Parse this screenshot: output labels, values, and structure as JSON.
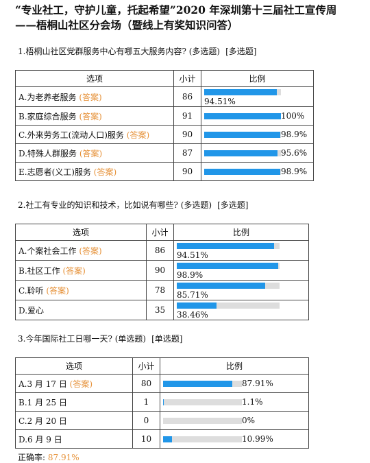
{
  "title": "“专业社工，守护儿童，托起希望”2020 年深圳第十三届社工宣传周——梧桐山社区分会场（暨线上有奖知识问答）",
  "questions": [
    {
      "text": "1.梧桐山社区党群服务中心有哪五大服务内容? (多选题)",
      "kind": "[多选题]",
      "header": [
        "选项",
        "小计",
        "比例"
      ],
      "rows": [
        {
          "option": "A.为老养老服务",
          "tag": "(答案)",
          "count": 86,
          "ratio": {
            "value": 94.51,
            "label": "94.51%"
          }
        },
        {
          "option": "B.家庭综合服务",
          "tag": "(答案)",
          "count": 91,
          "ratio": {
            "value": 100,
            "label": "100%"
          }
        },
        {
          "option": "C.外来劳务工(流动人口)服务",
          "tag": "(答案)",
          "count": 90,
          "ratio": {
            "value": 98.9,
            "label": "98.9%"
          }
        },
        {
          "option": "D.特殊人群服务",
          "tag": "(答案)",
          "count": 87,
          "ratio": {
            "value": 95.6,
            "label": "95.6%"
          }
        },
        {
          "option": "E.志愿者(义工)服务",
          "tag": "(答案)",
          "count": 90,
          "ratio": {
            "value": 98.9,
            "label": "98.9%"
          }
        }
      ]
    },
    {
      "text": "2.社工有专业的知识和技术，比如说有哪些? (多选题)",
      "kind": "[多选题]",
      "header": [
        "选项",
        "小计",
        "比例"
      ],
      "rows": [
        {
          "option": "A.个案社会工作",
          "tag": "(答案)",
          "count": 86,
          "ratio": {
            "value": 94.51,
            "label": "94.51%"
          }
        },
        {
          "option": "B.社区工作",
          "tag": "(答案)",
          "count": 90,
          "ratio": {
            "value": 98.9,
            "label": "98.9%"
          }
        },
        {
          "option": "C.聆听",
          "tag": "(答案)",
          "count": 78,
          "ratio": {
            "value": 85.71,
            "label": "85.71%"
          }
        },
        {
          "option": "D.爱心",
          "count": 35,
          "ratio": {
            "value": 38.46,
            "label": "38.46%"
          }
        }
      ]
    },
    {
      "text": "3.今年国际社工日哪一天? (单选题)",
      "kind": "[单选题]",
      "header": [
        "选项",
        "小计",
        "比例"
      ],
      "rows": [
        {
          "option": "A.3 月 17 日",
          "tag": "(答案)",
          "count": 80,
          "ratio": {
            "value": 87.91,
            "label": "87.91%"
          }
        },
        {
          "option": "B.1 月 25 日",
          "count": 1,
          "ratio": {
            "value": 1.1,
            "label": "1.1%"
          }
        },
        {
          "option": "C.2 月 20 日",
          "count": 0,
          "ratio": {
            "value": 0,
            "label": "0%"
          }
        },
        {
          "option": "D.6 月 9 日",
          "count": 10,
          "ratio": {
            "value": 10.99,
            "label": "10.99%"
          }
        }
      ]
    }
  ],
  "accuracy": {
    "label": "正确率:",
    "value": "87.91%"
  }
}
